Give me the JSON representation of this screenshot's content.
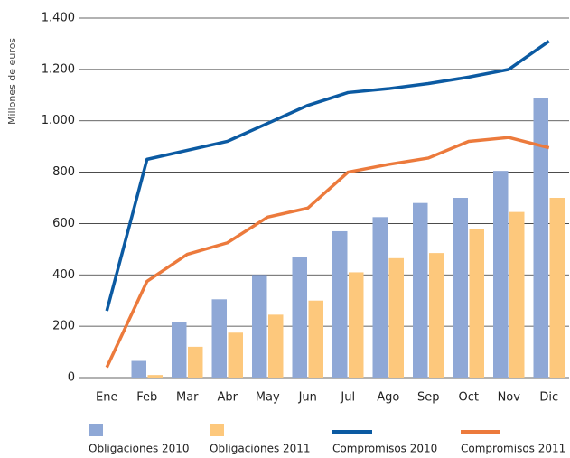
{
  "chart_data": {
    "type": "bar",
    "ylabel": "Millones de euros",
    "categories": [
      "Ene",
      "Feb",
      "Mar",
      "Abr",
      "May",
      "Jun",
      "Jul",
      "Ago",
      "Sep",
      "Oct",
      "Nov",
      "Dic"
    ],
    "series": [
      {
        "name": "Obligaciones 2010",
        "type": "bar",
        "color": "#8fa8d6",
        "values": [
          0,
          65,
          215,
          305,
          400,
          470,
          570,
          625,
          680,
          700,
          805,
          1090
        ]
      },
      {
        "name": "Obligaciones 2011",
        "type": "bar",
        "color": "#fdc87c",
        "values": [
          0,
          10,
          120,
          175,
          245,
          300,
          410,
          465,
          485,
          580,
          645,
          700
        ]
      },
      {
        "name": "Compromisos 2010",
        "type": "line",
        "color": "#0b5aa2",
        "values": [
          260,
          850,
          885,
          920,
          990,
          1060,
          1110,
          1125,
          1145,
          1170,
          1200,
          1310
        ]
      },
      {
        "name": "Compromisos 2011",
        "type": "line",
        "color": "#ec7a3c",
        "values": [
          40,
          375,
          480,
          525,
          625,
          660,
          800,
          830,
          855,
          920,
          935,
          895
        ]
      }
    ],
    "ylim": [
      0,
      1400
    ],
    "yticks": [
      0,
      200,
      400,
      600,
      800,
      {
        "value": 1000,
        "label": "1.000"
      },
      {
        "value": 1200,
        "label": "1.200"
      },
      {
        "value": 1400,
        "label": "1.400"
      }
    ],
    "grid": true,
    "legend": "bottom"
  }
}
